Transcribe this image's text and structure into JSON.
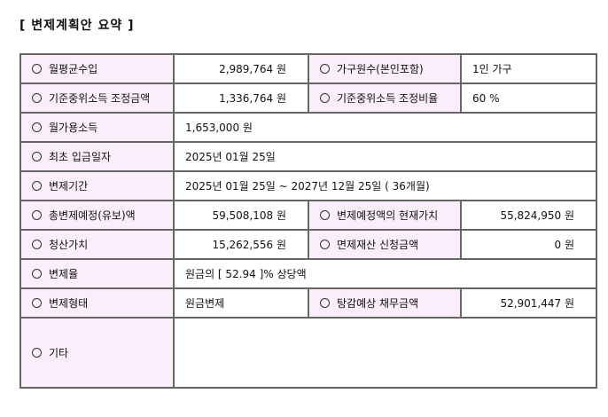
{
  "title": "[ 변제계획안 요약 ]",
  "rows": [
    {
      "l1": "월평균수입",
      "v1": "2,989,764 원",
      "l2": "가구원수(본인포함)",
      "v2": "1인 가구"
    },
    {
      "l1": "기준중위소득 조정금액",
      "v1": "1,336,764 원",
      "l2": "기준중위소득 조정비율",
      "v2": "60 %"
    },
    {
      "l1": "월가용소득",
      "v1": "1,653,000 원"
    },
    {
      "l1": "최초 입금일자",
      "v1": "2025년 01월 25일"
    },
    {
      "l1": "변제기간",
      "v1": "2025년 01월 25일 ~ 2027년 12월 25일 ( 36개월)"
    },
    {
      "l1": "총변제예정(유보)액",
      "v1": "59,508,108 원",
      "l2": "변제예정액의 현재가치",
      "v2": "55,824,950 원"
    },
    {
      "l1": "청산가치",
      "v1": "15,262,556 원",
      "l2": "면제재산 신청금액",
      "v2": "0 원"
    },
    {
      "l1": "변제율",
      "v1": "원금의 [ 52.94 ]% 상당액"
    },
    {
      "l1": "변제형태",
      "v1": "원금변제",
      "l2": "탕감예상 채무금액",
      "v2": "52,901,447 원"
    },
    {
      "l1": "기타",
      "v1": ""
    }
  ]
}
